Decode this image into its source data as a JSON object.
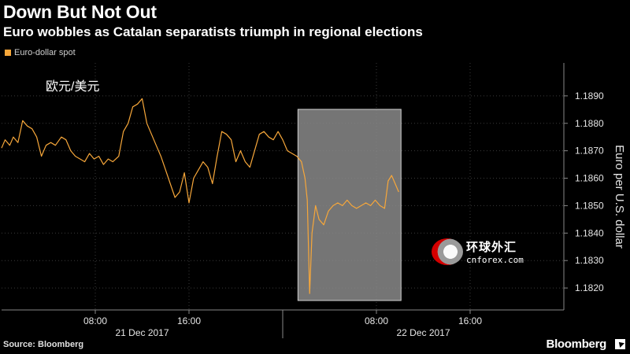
{
  "header": {
    "title": "Down But Not Out",
    "subtitle": "Euro wobbles as Catalan separatists triumph in regional elections"
  },
  "colors": {
    "series": "#f7a73a",
    "grid": "#3a3a3a",
    "highlight": "#8a8a8a",
    "background": "#000000",
    "watermark_red": "#d40000"
  },
  "overlay_text": "欧元/美元",
  "watermark": {
    "chinese": "环球外汇",
    "english": "cnforex.com"
  },
  "footer": {
    "source": "Source: Bloomberg",
    "brand": "Bloomberg"
  },
  "chart_data": {
    "type": "line",
    "title": "Down But Not Out",
    "legend": [
      "Euro-dollar spot"
    ],
    "legend_position": "top-left",
    "ylabel": "Euro per U.S. dollar",
    "ylim": [
      1.1812,
      1.1902
    ],
    "y_ticks": [
      "1.1890",
      "1.1880",
      "1.1870",
      "1.1860",
      "1.1850",
      "1.1840",
      "1.1830",
      "1.1820"
    ],
    "x_range_hours": [
      0,
      48
    ],
    "x_ticks": [
      {
        "hour": 8,
        "label": "08:00"
      },
      {
        "hour": 16,
        "label": "16:00"
      },
      {
        "hour": 32,
        "label": "08:00"
      },
      {
        "hour": 40,
        "label": "16:00"
      }
    ],
    "date_labels": [
      {
        "hour": 12,
        "label": "21 Dec 2017"
      },
      {
        "hour": 36,
        "label": "22 Dec 2017"
      }
    ],
    "day_divider_hour": 24,
    "grid": true,
    "highlight_region_hours": [
      25.3,
      34.1
    ],
    "series": [
      {
        "name": "Euro-dollar spot",
        "points": [
          [
            0.0,
            1.1871
          ],
          [
            0.3,
            1.1874
          ],
          [
            0.7,
            1.1872
          ],
          [
            1.0,
            1.1875
          ],
          [
            1.4,
            1.1873
          ],
          [
            1.8,
            1.1881
          ],
          [
            2.2,
            1.1879
          ],
          [
            2.6,
            1.1878
          ],
          [
            3.0,
            1.1875
          ],
          [
            3.4,
            1.1868
          ],
          [
            3.8,
            1.1872
          ],
          [
            4.2,
            1.1873
          ],
          [
            4.6,
            1.1872
          ],
          [
            5.1,
            1.1875
          ],
          [
            5.5,
            1.1874
          ],
          [
            5.9,
            1.187
          ],
          [
            6.3,
            1.1868
          ],
          [
            6.7,
            1.1867
          ],
          [
            7.1,
            1.1866
          ],
          [
            7.5,
            1.1869
          ],
          [
            7.9,
            1.1867
          ],
          [
            8.3,
            1.1868
          ],
          [
            8.7,
            1.1865
          ],
          [
            9.1,
            1.1867
          ],
          [
            9.5,
            1.1866
          ],
          [
            10.0,
            1.1868
          ],
          [
            10.4,
            1.1877
          ],
          [
            10.8,
            1.188
          ],
          [
            11.2,
            1.1886
          ],
          [
            11.6,
            1.1887
          ],
          [
            12.0,
            1.1889
          ],
          [
            12.4,
            1.188
          ],
          [
            12.8,
            1.1876
          ],
          [
            13.2,
            1.1872
          ],
          [
            13.6,
            1.1868
          ],
          [
            14.0,
            1.1863
          ],
          [
            14.4,
            1.1858
          ],
          [
            14.8,
            1.1853
          ],
          [
            15.2,
            1.1855
          ],
          [
            15.6,
            1.1862
          ],
          [
            16.0,
            1.1851
          ],
          [
            16.4,
            1.186
          ],
          [
            16.8,
            1.1863
          ],
          [
            17.2,
            1.1866
          ],
          [
            17.6,
            1.1864
          ],
          [
            18.0,
            1.1858
          ],
          [
            18.4,
            1.1868
          ],
          [
            18.8,
            1.1877
          ],
          [
            19.2,
            1.1876
          ],
          [
            19.6,
            1.1874
          ],
          [
            20.0,
            1.1866
          ],
          [
            20.4,
            1.187
          ],
          [
            20.8,
            1.1866
          ],
          [
            21.2,
            1.1864
          ],
          [
            21.6,
            1.187
          ],
          [
            22.0,
            1.1876
          ],
          [
            22.4,
            1.1877
          ],
          [
            22.8,
            1.1875
          ],
          [
            23.2,
            1.1874
          ],
          [
            23.6,
            1.1877
          ],
          [
            24.0,
            1.1874
          ],
          [
            24.4,
            1.187
          ],
          [
            24.8,
            1.1869
          ],
          [
            25.2,
            1.1868
          ],
          [
            25.6,
            1.1866
          ],
          [
            25.9,
            1.186
          ],
          [
            26.1,
            1.1852
          ],
          [
            26.3,
            1.1818
          ],
          [
            26.5,
            1.184
          ],
          [
            26.8,
            1.185
          ],
          [
            27.1,
            1.1845
          ],
          [
            27.5,
            1.1843
          ],
          [
            27.9,
            1.1848
          ],
          [
            28.3,
            1.185
          ],
          [
            28.7,
            1.1851
          ],
          [
            29.1,
            1.185
          ],
          [
            29.5,
            1.1852
          ],
          [
            29.9,
            1.185
          ],
          [
            30.3,
            1.1849
          ],
          [
            30.7,
            1.185
          ],
          [
            31.1,
            1.1851
          ],
          [
            31.5,
            1.185
          ],
          [
            31.9,
            1.1852
          ],
          [
            32.3,
            1.185
          ],
          [
            32.7,
            1.1849
          ],
          [
            33.0,
            1.1859
          ],
          [
            33.3,
            1.1861
          ],
          [
            33.6,
            1.1858
          ],
          [
            33.9,
            1.1855
          ]
        ]
      }
    ]
  }
}
